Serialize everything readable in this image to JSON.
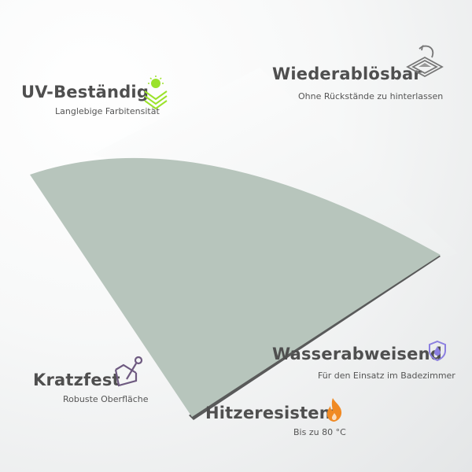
{
  "features": [
    {
      "title": "UV-Beständig",
      "subtitle": "Langlebige Farbitensität",
      "icon": "sun-layers-icon",
      "icon_color": "#9be22b"
    },
    {
      "title": "Wiederablösbar",
      "subtitle": "Ohne Rückstände zu hinterlassen",
      "icon": "peel-sheet-icon",
      "icon_color": "#777777"
    },
    {
      "title": "Kratzfest",
      "subtitle": "Robuste Oberfläche",
      "icon": "scratch-tool-icon",
      "icon_color": "#6e5a80"
    },
    {
      "title": "Wasserabweisend",
      "subtitle": "Für den Einsatz im Badezimmer",
      "icon": "water-shield-icon",
      "icon_color": "#8b7fe0"
    },
    {
      "title": "Hitzeresistent",
      "subtitle": "Bis zu 80 °C",
      "icon": "flame-icon",
      "icon_color": "#f08a24"
    }
  ],
  "product": {
    "color": "#b7c5bc"
  }
}
